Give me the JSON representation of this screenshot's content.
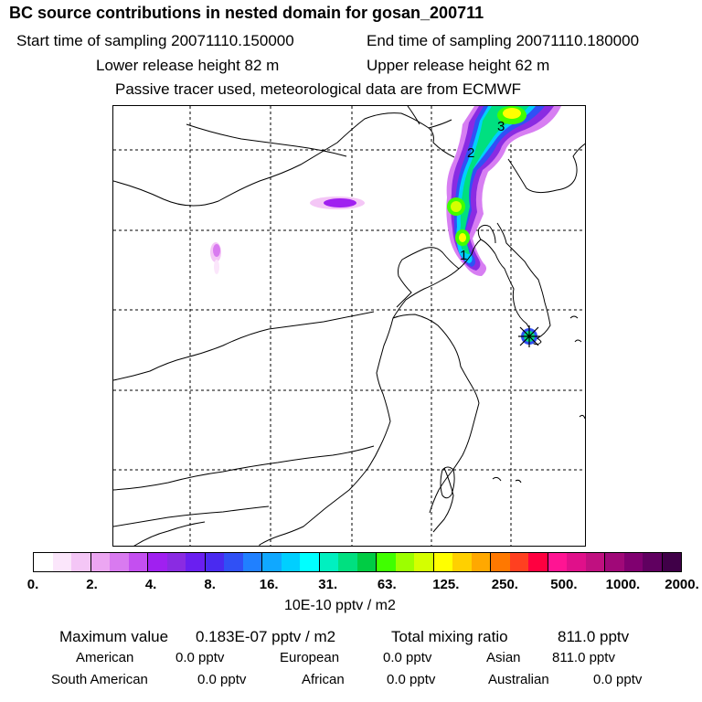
{
  "header": {
    "title": "BC  source contributions in nested domain for gosan_200711",
    "start_time": "Start time of sampling 20071110.150000",
    "end_time": "End time of sampling 20071110.180000",
    "lower_height": "Lower release height   82 m",
    "upper_height": "Upper release height   62 m",
    "tracer_note": "Passive tracer used, meteorological data are from ECMWF"
  },
  "map": {
    "plume_labels": [
      "1",
      "2",
      "3"
    ],
    "receptor_marker": "receptor-star"
  },
  "colorbar": {
    "colors": [
      "#ffffff",
      "#fbe6fb",
      "#f4c6f6",
      "#eca6f2",
      "#d97af0",
      "#c44ff0",
      "#a020f0",
      "#8a2be2",
      "#6a1ff0",
      "#4a2af0",
      "#3050f5",
      "#2080ff",
      "#10a8ff",
      "#00cfff",
      "#00ffff",
      "#00f0c0",
      "#00e080",
      "#00cc44",
      "#40ff00",
      "#9cff00",
      "#d4ff00",
      "#ffff00",
      "#ffd000",
      "#ffa800",
      "#ff7800",
      "#ff4020",
      "#ff0040",
      "#ff1493",
      "#e0108a",
      "#c01080",
      "#a00878",
      "#800070",
      "#600060",
      "#400048"
    ],
    "tick_labels": [
      "0.",
      "2.",
      "4.",
      "8.",
      "16.",
      "31.",
      "63.",
      "125.",
      "250.",
      "500.",
      "1000.",
      "2000."
    ],
    "unit": "10E-10 pptv / m2"
  },
  "summary": {
    "max_label": "Maximum value",
    "max_value": "0.183E-07 pptv / m2",
    "total_label": "Total mixing ratio",
    "total_value": "811.0 pptv"
  },
  "contributions": [
    [
      {
        "name": "American",
        "value": "0.0 pptv"
      },
      {
        "name": "European",
        "value": "0.0 pptv"
      },
      {
        "name": "Asian",
        "value": "811.0 pptv"
      }
    ],
    [
      {
        "name": "South American",
        "value": "0.0 pptv"
      },
      {
        "name": "African",
        "value": "0.0 pptv"
      },
      {
        "name": "Australian",
        "value": "0.0 pptv"
      }
    ]
  ]
}
